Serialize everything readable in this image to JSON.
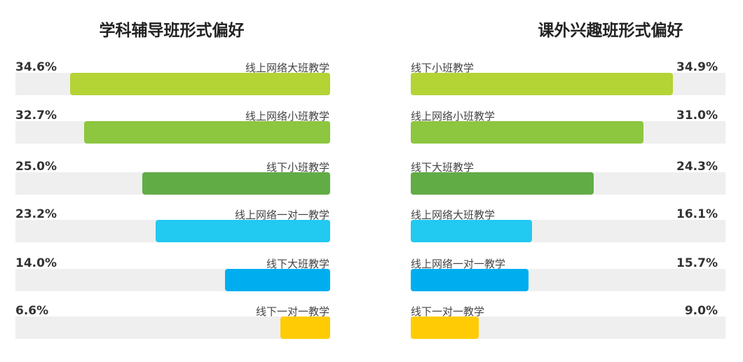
{
  "chart_data": [
    {
      "type": "bar",
      "orientation": "horizontal",
      "title": "学科辅导班形式偏好",
      "categories": [
        "线上网络大班教学",
        "线上网络小班教学",
        "线下小班教学",
        "线上网络一对一教学",
        "线下大班教学",
        "线下一对一教学"
      ],
      "values": [
        34.6,
        32.7,
        25.0,
        23.2,
        14.0,
        6.6
      ],
      "labels": [
        "34.6%",
        "32.7%",
        "25.0%",
        "23.2%",
        "14.0%",
        "6.6%"
      ],
      "colors": [
        "#b4d335",
        "#8dc63f",
        "#62ac46",
        "#22c9f0",
        "#00aeef",
        "#ffcb05"
      ],
      "xlim": [
        0,
        40
      ]
    },
    {
      "type": "bar",
      "orientation": "horizontal",
      "title": "课外兴趣班形式偏好",
      "categories": [
        "线下小班教学",
        "线上网络小班教学",
        "线下大班教学",
        "线上网络大班教学",
        "线上网络一对一教学",
        "线下一对一教学"
      ],
      "values": [
        34.9,
        31.0,
        24.3,
        16.1,
        15.7,
        9.0
      ],
      "labels": [
        "34.9%",
        "31.0%",
        "24.3%",
        "16.1%",
        "15.7%",
        "9.0%"
      ],
      "colors": [
        "#b4d335",
        "#8dc63f",
        "#62ac46",
        "#22c9f0",
        "#00aeef",
        "#ffcb05"
      ],
      "xlim": [
        0,
        40
      ]
    }
  ]
}
